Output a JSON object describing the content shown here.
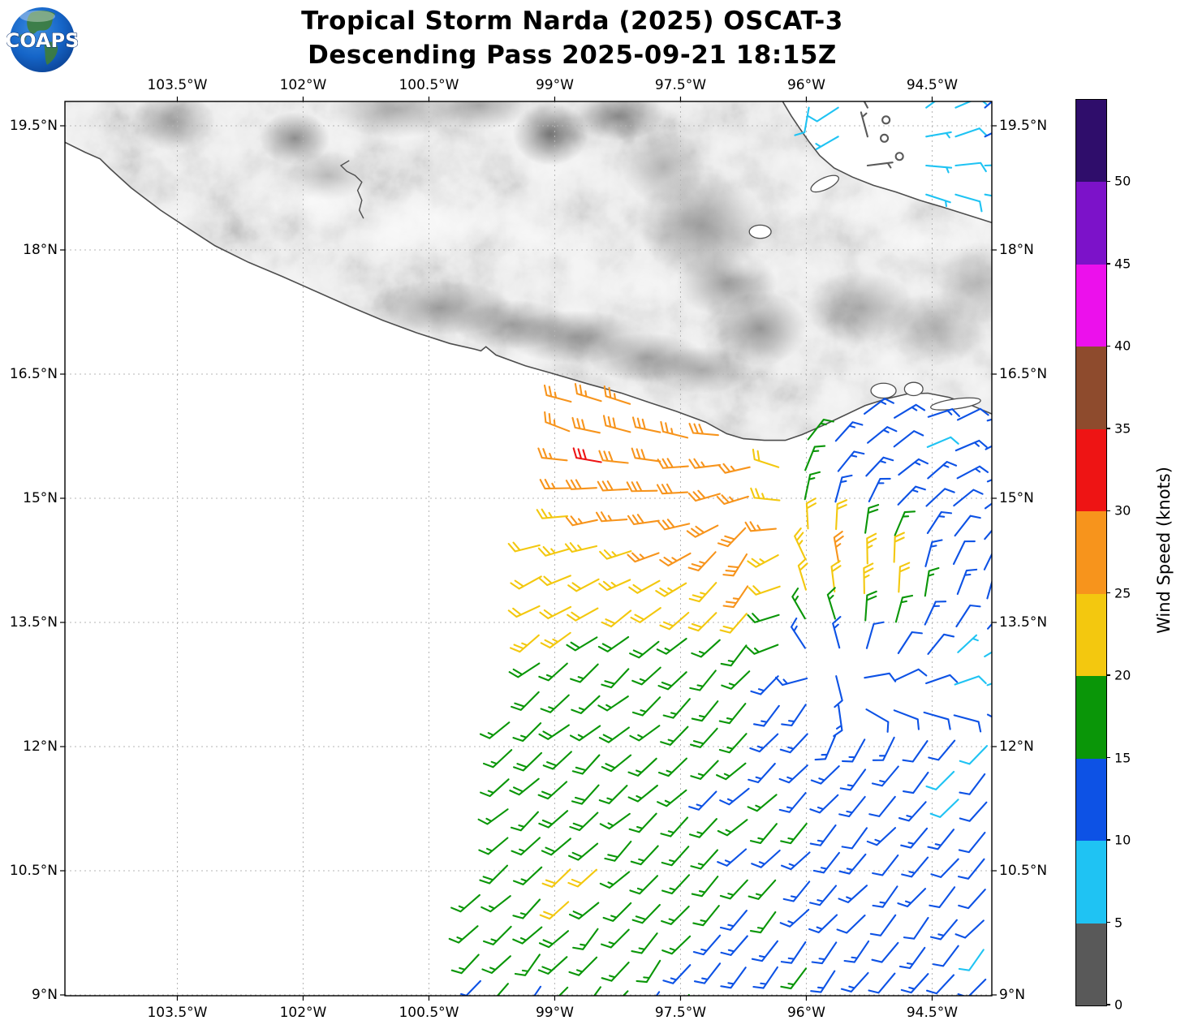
{
  "header": {
    "title_line1": "Tropical Storm Narda (2025) OSCAT-3",
    "title_line2": "Descending Pass 2025-09-21 18:15Z",
    "logo_text": "COAPS"
  },
  "axes": {
    "x_ticks": [
      {
        "lon": -103.5,
        "label": "103.5°W"
      },
      {
        "lon": -102.0,
        "label": "102°W"
      },
      {
        "lon": -100.5,
        "label": "100.5°W"
      },
      {
        "lon": -99.0,
        "label": "99°W"
      },
      {
        "lon": -97.5,
        "label": "97.5°W"
      },
      {
        "lon": -96.0,
        "label": "96°W"
      },
      {
        "lon": -94.5,
        "label": "94.5°W"
      }
    ],
    "y_ticks": [
      {
        "lat": 19.5,
        "label": "19.5°N"
      },
      {
        "lat": 18.0,
        "label": "18°N"
      },
      {
        "lat": 16.5,
        "label": "16.5°N"
      },
      {
        "lat": 15.0,
        "label": "15°N"
      },
      {
        "lat": 13.5,
        "label": "13.5°N"
      },
      {
        "lat": 12.0,
        "label": "12°N"
      },
      {
        "lat": 10.5,
        "label": "10.5°N"
      },
      {
        "lat": 9.0,
        "label": "9°N"
      }
    ]
  },
  "colorbar": {
    "label": "Wind Speed (knots)",
    "tick_values": [
      0,
      5,
      10,
      15,
      20,
      25,
      30,
      35,
      40,
      45,
      50
    ],
    "max_value": 55,
    "segments": [
      {
        "from": 0,
        "to": 5,
        "color": "#595959"
      },
      {
        "from": 5,
        "to": 10,
        "color": "#1FC3F3"
      },
      {
        "from": 10,
        "to": 15,
        "color": "#0D52E5"
      },
      {
        "from": 15,
        "to": 20,
        "color": "#0A9608"
      },
      {
        "from": 20,
        "to": 25,
        "color": "#F3C80F"
      },
      {
        "from": 25,
        "to": 30,
        "color": "#F7941C"
      },
      {
        "from": 30,
        "to": 35,
        "color": "#EE1414"
      },
      {
        "from": 35,
        "to": 40,
        "color": "#8E4B2D"
      },
      {
        "from": 40,
        "to": 45,
        "color": "#EC10EC"
      },
      {
        "from": 45,
        "to": 50,
        "color": "#7C12C9"
      },
      {
        "from": 50,
        "to": 55,
        "color": "#2F0D6B"
      }
    ]
  },
  "chart_data": {
    "type": "wind_barbs",
    "units": "knots",
    "storm": "Tropical Storm Narda (2025)",
    "satellite": "OSCAT-3",
    "pass": "Descending",
    "datetime_utc": "2025-09-21 18:15Z",
    "lon_range": [
      -104.84,
      -93.79
    ],
    "lat_range": [
      8.99,
      19.79
    ],
    "grid_on": true,
    "speed_bins": [
      {
        "max": 5,
        "color": "#595959"
      },
      {
        "max": 10,
        "color": "#1FC3F3"
      },
      {
        "max": 15,
        "color": "#0D52E5"
      },
      {
        "max": 20,
        "color": "#0A9608"
      },
      {
        "max": 25,
        "color": "#F3C80F"
      },
      {
        "max": 30,
        "color": "#F7941C"
      },
      {
        "max": 35,
        "color": "#EE1414"
      }
    ],
    "main_swath": {
      "barb_spacing_deg": 0.355,
      "row_tilt_deg_per_lon": 0.05,
      "left_edge": {
        "lon_at_lat_16_3": -98.9,
        "widen_per_deg_lat": 0.1644
      },
      "grid_lons": [
        -99.4,
        -98.7,
        -98.0,
        -97.3,
        -96.6,
        -95.9,
        -95.2,
        -94.5,
        -93.8
      ],
      "grid_lats": [
        16.2,
        15.6,
        15.0,
        14.4,
        13.8,
        13.2,
        12.6,
        12.0,
        11.4,
        10.8,
        10.2,
        9.6,
        9.0
      ],
      "dir_from_deg": [
        [
          292,
          290,
          287,
          282,
          270,
          55,
          62,
          70,
          76
        ],
        [
          286,
          285,
          282,
          277,
          263,
          40,
          52,
          64,
          70
        ],
        [
          272,
          272,
          270,
          261,
          248,
          15,
          38,
          52,
          62
        ],
        [
          256,
          252,
          248,
          238,
          214,
          350,
          358,
          22,
          38
        ],
        [
          242,
          238,
          234,
          228,
          210,
          342,
          354,
          12,
          24
        ],
        [
          234,
          232,
          230,
          226,
          216,
          335,
          15,
          40,
          58
        ],
        [
          231,
          230,
          229,
          227,
          221,
          205,
          95,
          85,
          82
        ],
        [
          230,
          229,
          228,
          227,
          225,
          221,
          216,
          220,
          224
        ],
        [
          229,
          228,
          227,
          226,
          225,
          224,
          222,
          223,
          224
        ],
        [
          228,
          227,
          226,
          225,
          224,
          223,
          222,
          222,
          223
        ],
        [
          226,
          226,
          225,
          224,
          223,
          222,
          221,
          221,
          222
        ],
        [
          222,
          222,
          221,
          220,
          220,
          219,
          219,
          220,
          221
        ],
        [
          218,
          218,
          217,
          217,
          216,
          216,
          217,
          218,
          219
        ]
      ],
      "speed_kt": [
        [
          24,
          26,
          27,
          26,
          23,
          15,
          14,
          12,
          11
        ],
        [
          26,
          28,
          29,
          28,
          26,
          14,
          13,
          13,
          12
        ],
        [
          24,
          27,
          29,
          30,
          27,
          14,
          13,
          13,
          11
        ],
        [
          22,
          24,
          26,
          27,
          29,
          21,
          22,
          13,
          12
        ],
        [
          19,
          21,
          22,
          23,
          24,
          17,
          25,
          13,
          11
        ],
        [
          20,
          18,
          18,
          17,
          17,
          14,
          12,
          10,
          10
        ],
        [
          17,
          17,
          17,
          16,
          16,
          14,
          11,
          10,
          10
        ],
        [
          16,
          17,
          18,
          17,
          16,
          14,
          13,
          12,
          11
        ],
        [
          16,
          18,
          17,
          16,
          15,
          14,
          13,
          12,
          12
        ],
        [
          17,
          19,
          18,
          16,
          15,
          14,
          13,
          12,
          11
        ],
        [
          16,
          18,
          17,
          16,
          15,
          14,
          13,
          12,
          12
        ],
        [
          16,
          17,
          17,
          16,
          15,
          14,
          13,
          13,
          12
        ],
        [
          15,
          16,
          16,
          15,
          15,
          14,
          13,
          13,
          12
        ]
      ],
      "speed_pockets": [
        {
          "lon": -98.32,
          "lat": 15.38,
          "r": 0.2,
          "dspd": 4
        },
        {
          "lon": -96.1,
          "lat": 14.72,
          "r": 0.22,
          "dspd": 4
        },
        {
          "lon": -95.78,
          "lat": 14.28,
          "r": 0.2,
          "dspd": 5
        },
        {
          "lon": -98.95,
          "lat": 13.48,
          "r": 0.28,
          "dspd": 5
        },
        {
          "lon": -98.75,
          "lat": 12.15,
          "r": 0.22,
          "dspd": 4
        },
        {
          "lon": -99.0,
          "lat": 11.55,
          "r": 0.25,
          "dspd": 5
        },
        {
          "lon": -98.6,
          "lat": 10.4,
          "r": 0.28,
          "dspd": 6
        },
        {
          "lon": -98.9,
          "lat": 9.3,
          "r": 0.22,
          "dspd": 4
        },
        {
          "lon": -95.15,
          "lat": 13.85,
          "r": 0.3,
          "dspd": 2
        },
        {
          "lon": -94.5,
          "lat": 15.5,
          "r": 0.16,
          "dspd": -5
        },
        {
          "lon": -94.35,
          "lat": 11.9,
          "r": 0.18,
          "dspd": -5
        },
        {
          "lon": -94.15,
          "lat": 12.95,
          "r": 0.2,
          "dspd": -4
        },
        {
          "lon": -94.2,
          "lat": 11.33,
          "r": 0.15,
          "dspd": -4
        },
        {
          "lon": -93.95,
          "lat": 9.6,
          "r": 0.15,
          "dspd": -4
        }
      ]
    },
    "campeche_patch": {
      "barb_spacing_deg": 0.35,
      "grid_lons": [
        -96.3,
        -95.8,
        -95.3,
        -94.8,
        -94.3,
        -93.85
      ],
      "grid_lats": [
        19.65,
        19.25,
        18.85,
        18.5
      ],
      "dir_from_deg": [
        [
          188,
          200,
          330,
          60,
          66,
          48
        ],
        [
          184,
          212,
          345,
          85,
          78,
          72
        ],
        [
          192,
          222,
          135,
          108,
          92,
          98
        ],
        [
          200,
          232,
          142,
          118,
          104,
          108
        ]
      ],
      "speed_kt": [
        [
          12,
          8,
          4,
          8,
          9,
          12
        ],
        [
          13,
          8,
          3,
          4,
          8,
          9
        ],
        [
          12,
          8,
          4,
          4,
          8,
          8
        ],
        [
          10,
          7,
          4,
          7,
          8,
          8
        ]
      ],
      "calm_circles": [
        [
          -95.05,
          19.57
        ],
        [
          -95.07,
          19.35
        ],
        [
          -94.89,
          19.13
        ]
      ]
    }
  },
  "map": {
    "land_base": "#f4f4f4",
    "coast_color": "#4d4d4d",
    "grid_color": "#b5b5b5",
    "frame_color": "#000000",
    "pacific_coast": [
      [
        -104.84,
        19.3
      ],
      [
        -104.6,
        19.18
      ],
      [
        -104.42,
        19.1
      ],
      [
        -104.3,
        18.98
      ],
      [
        -104.05,
        18.75
      ],
      [
        -103.7,
        18.48
      ],
      [
        -103.4,
        18.28
      ],
      [
        -103.05,
        18.05
      ],
      [
        -102.65,
        17.85
      ],
      [
        -102.25,
        17.68
      ],
      [
        -101.85,
        17.5
      ],
      [
        -101.45,
        17.32
      ],
      [
        -101.05,
        17.15
      ],
      [
        -100.65,
        17.0
      ],
      [
        -100.25,
        16.87
      ],
      [
        -99.95,
        16.8
      ],
      [
        -99.88,
        16.78
      ],
      [
        -99.82,
        16.83
      ],
      [
        -99.7,
        16.73
      ],
      [
        -99.35,
        16.6
      ],
      [
        -99.0,
        16.5
      ],
      [
        -98.6,
        16.38
      ],
      [
        -98.2,
        16.27
      ],
      [
        -97.85,
        16.15
      ],
      [
        -97.55,
        16.05
      ],
      [
        -97.2,
        15.92
      ],
      [
        -96.95,
        15.78
      ],
      [
        -96.75,
        15.72
      ],
      [
        -96.5,
        15.7
      ],
      [
        -96.25,
        15.7
      ],
      [
        -96.05,
        15.77
      ],
      [
        -95.8,
        15.88
      ],
      [
        -95.55,
        16.0
      ],
      [
        -95.3,
        16.12
      ],
      [
        -95.05,
        16.2
      ],
      [
        -94.8,
        16.26
      ],
      [
        -94.55,
        16.27
      ],
      [
        -94.3,
        16.22
      ],
      [
        -94.05,
        16.13
      ],
      [
        -93.79,
        16.02
      ]
    ],
    "gulf_coast": [
      [
        -96.28,
        19.79
      ],
      [
        -96.18,
        19.62
      ],
      [
        -96.08,
        19.47
      ],
      [
        -95.97,
        19.31
      ],
      [
        -95.84,
        19.14
      ],
      [
        -95.67,
        18.99
      ],
      [
        -95.45,
        18.88
      ],
      [
        -95.2,
        18.78
      ],
      [
        -94.93,
        18.7
      ],
      [
        -94.65,
        18.6
      ],
      [
        -94.38,
        18.52
      ],
      [
        -94.1,
        18.43
      ],
      [
        -93.79,
        18.33
      ]
    ],
    "river_polyline": [
      [
        -101.45,
        19.08
      ],
      [
        -101.55,
        19.02
      ],
      [
        -101.48,
        18.95
      ],
      [
        -101.38,
        18.9
      ],
      [
        -101.3,
        18.82
      ],
      [
        -101.35,
        18.72
      ],
      [
        -101.3,
        18.6
      ],
      [
        -101.33,
        18.48
      ],
      [
        -101.28,
        18.38
      ]
    ],
    "water_bodies": [
      {
        "name": "laguna-alvarado",
        "lon": -95.78,
        "lat": 18.8,
        "rx": 0.18,
        "ry": 0.07,
        "rot": -25
      },
      {
        "name": "presa-temascal",
        "lon": -96.55,
        "lat": 18.22,
        "rx": 0.13,
        "ry": 0.08,
        "rot": 0
      },
      {
        "name": "laguna-superior",
        "lon": -95.08,
        "lat": 16.3,
        "rx": 0.15,
        "ry": 0.09,
        "rot": 0
      },
      {
        "name": "laguna-inferior",
        "lon": -94.72,
        "lat": 16.32,
        "rx": 0.11,
        "ry": 0.08,
        "rot": 0
      },
      {
        "name": "mar-muerto",
        "lon": -94.22,
        "lat": 16.14,
        "rx": 0.3,
        "ry": 0.06,
        "rot": -8
      }
    ],
    "terrain_dark": [
      [
        -103.55,
        19.55,
        0.5,
        0.35,
        0.4
      ],
      [
        -102.1,
        19.35,
        0.42,
        0.32,
        0.55
      ],
      [
        -101.7,
        18.9,
        0.5,
        0.3,
        0.3
      ],
      [
        -99.05,
        19.4,
        0.45,
        0.38,
        0.6
      ],
      [
        -98.25,
        19.62,
        0.55,
        0.3,
        0.5
      ],
      [
        -97.7,
        19.0,
        0.5,
        0.45,
        0.35
      ],
      [
        -97.25,
        18.3,
        0.75,
        0.65,
        0.45
      ],
      [
        -96.95,
        17.6,
        0.6,
        0.4,
        0.45
      ],
      [
        -96.55,
        17.05,
        0.55,
        0.45,
        0.5
      ],
      [
        -100.35,
        17.3,
        0.85,
        0.33,
        0.45
      ],
      [
        -99.5,
        17.1,
        0.7,
        0.3,
        0.4
      ],
      [
        -98.75,
        16.95,
        0.85,
        0.32,
        0.45
      ],
      [
        -97.9,
        16.7,
        0.7,
        0.3,
        0.42
      ],
      [
        -97.25,
        16.55,
        0.6,
        0.28,
        0.4
      ],
      [
        -95.35,
        17.3,
        0.65,
        0.45,
        0.38
      ],
      [
        -94.45,
        17.05,
        0.6,
        0.45,
        0.32
      ],
      [
        -93.95,
        17.6,
        0.5,
        0.5,
        0.3
      ],
      [
        -100.9,
        19.7,
        0.8,
        0.35,
        0.35
      ],
      [
        -99.9,
        19.75,
        0.6,
        0.3,
        0.4
      ]
    ],
    "terrain_light": [
      [
        -101.9,
        18.55,
        0.8,
        0.35,
        0.55
      ],
      [
        -100.6,
        18.35,
        1.0,
        0.45,
        0.55
      ],
      [
        -99.3,
        18.1,
        0.8,
        0.4,
        0.4
      ],
      [
        -96.75,
        17.85,
        0.35,
        0.22,
        0.55
      ],
      [
        -95.6,
        18.55,
        0.9,
        0.4,
        0.6
      ],
      [
        -94.6,
        18.1,
        0.7,
        0.35,
        0.5
      ],
      [
        -98.0,
        17.55,
        0.6,
        0.3,
        0.4
      ]
    ]
  }
}
